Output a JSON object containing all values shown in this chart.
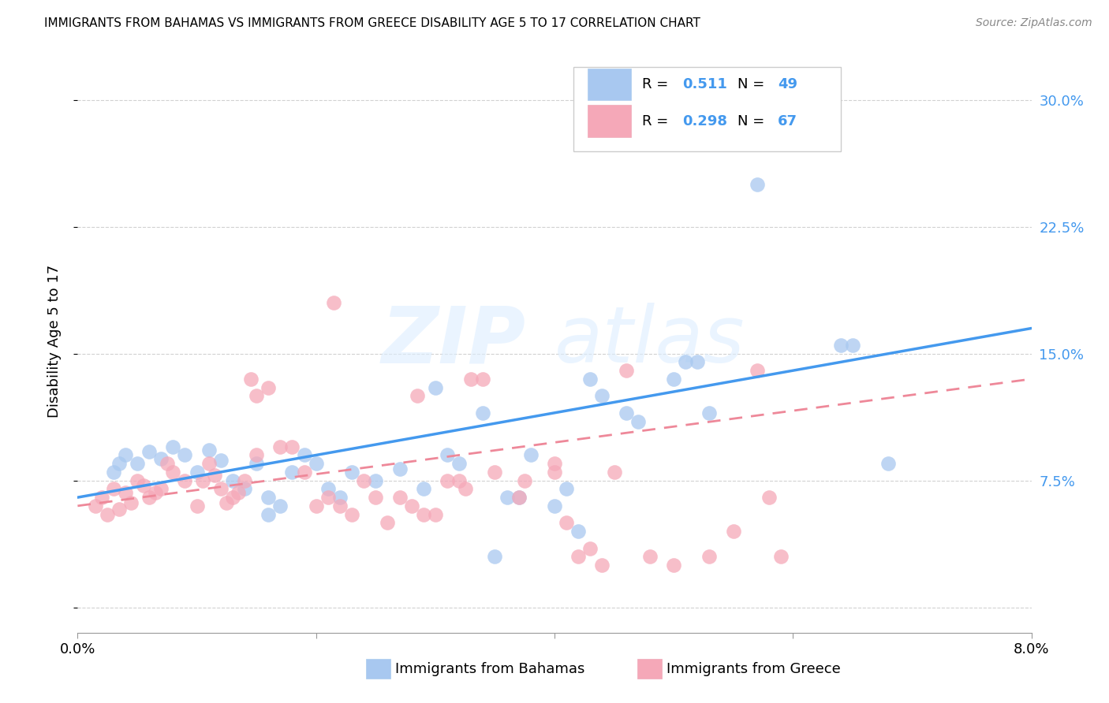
{
  "title": "IMMIGRANTS FROM BAHAMAS VS IMMIGRANTS FROM GREECE DISABILITY AGE 5 TO 17 CORRELATION CHART",
  "source": "Source: ZipAtlas.com",
  "ylabel": "Disability Age 5 to 17",
  "xlim": [
    0.0,
    8.0
  ],
  "ylim": [
    -1.5,
    33.0
  ],
  "watermark_zip": "ZIP",
  "watermark_atlas": "atlas",
  "blue_color": "#a8c8f0",
  "pink_color": "#f5a8b8",
  "blue_line_color": "#4499ee",
  "pink_line_color": "#ee8899",
  "blue_scatter_x": [
    0.4,
    0.5,
    0.6,
    0.7,
    0.8,
    0.9,
    1.0,
    1.1,
    1.2,
    1.3,
    1.4,
    1.5,
    1.6,
    1.7,
    1.8,
    1.9,
    2.0,
    2.1,
    2.2,
    2.3,
    2.5,
    2.7,
    2.9,
    3.0,
    3.1,
    3.2,
    3.4,
    3.6,
    3.7,
    3.8,
    4.0,
    4.1,
    4.2,
    4.3,
    4.4,
    4.6,
    4.7,
    5.0,
    5.1,
    5.2,
    5.3,
    5.7,
    6.4,
    6.5,
    6.8,
    0.3,
    0.35,
    1.6,
    3.5
  ],
  "blue_scatter_y": [
    9.0,
    8.5,
    9.2,
    8.8,
    9.5,
    9.0,
    8.0,
    9.3,
    8.7,
    7.5,
    7.0,
    8.5,
    6.5,
    6.0,
    8.0,
    9.0,
    8.5,
    7.0,
    6.5,
    8.0,
    7.5,
    8.2,
    7.0,
    13.0,
    9.0,
    8.5,
    11.5,
    6.5,
    6.5,
    9.0,
    6.0,
    7.0,
    4.5,
    13.5,
    12.5,
    11.5,
    11.0,
    13.5,
    14.5,
    14.5,
    11.5,
    25.0,
    15.5,
    15.5,
    8.5,
    8.0,
    8.5,
    5.5,
    3.0
  ],
  "pink_scatter_x": [
    0.15,
    0.2,
    0.25,
    0.3,
    0.35,
    0.4,
    0.45,
    0.5,
    0.55,
    0.6,
    0.65,
    0.7,
    0.75,
    0.8,
    0.9,
    1.0,
    1.05,
    1.1,
    1.15,
    1.2,
    1.25,
    1.3,
    1.35,
    1.4,
    1.45,
    1.5,
    1.5,
    1.6,
    1.7,
    1.8,
    1.9,
    2.0,
    2.1,
    2.15,
    2.2,
    2.3,
    2.4,
    2.5,
    2.6,
    2.7,
    2.8,
    2.85,
    2.9,
    3.0,
    3.1,
    3.2,
    3.25,
    3.3,
    3.4,
    3.5,
    3.7,
    3.75,
    4.0,
    4.0,
    4.1,
    4.2,
    4.3,
    4.4,
    4.5,
    4.6,
    4.8,
    5.0,
    5.3,
    5.5,
    5.7,
    5.8,
    5.9
  ],
  "pink_scatter_y": [
    6.0,
    6.5,
    5.5,
    7.0,
    5.8,
    6.8,
    6.2,
    7.5,
    7.2,
    6.5,
    6.8,
    7.0,
    8.5,
    8.0,
    7.5,
    6.0,
    7.5,
    8.5,
    7.8,
    7.0,
    6.2,
    6.5,
    6.8,
    7.5,
    13.5,
    9.0,
    12.5,
    13.0,
    9.5,
    9.5,
    8.0,
    6.0,
    6.5,
    18.0,
    6.0,
    5.5,
    7.5,
    6.5,
    5.0,
    6.5,
    6.0,
    12.5,
    5.5,
    5.5,
    7.5,
    7.5,
    7.0,
    13.5,
    13.5,
    8.0,
    6.5,
    7.5,
    8.0,
    8.5,
    5.0,
    3.0,
    3.5,
    2.5,
    8.0,
    14.0,
    3.0,
    2.5,
    3.0,
    4.5,
    14.0,
    6.5,
    3.0
  ],
  "blue_trend_x": [
    0.0,
    8.0
  ],
  "blue_trend_y": [
    6.5,
    16.5
  ],
  "pink_trend_x": [
    0.0,
    8.0
  ],
  "pink_trend_y": [
    6.0,
    13.5
  ]
}
